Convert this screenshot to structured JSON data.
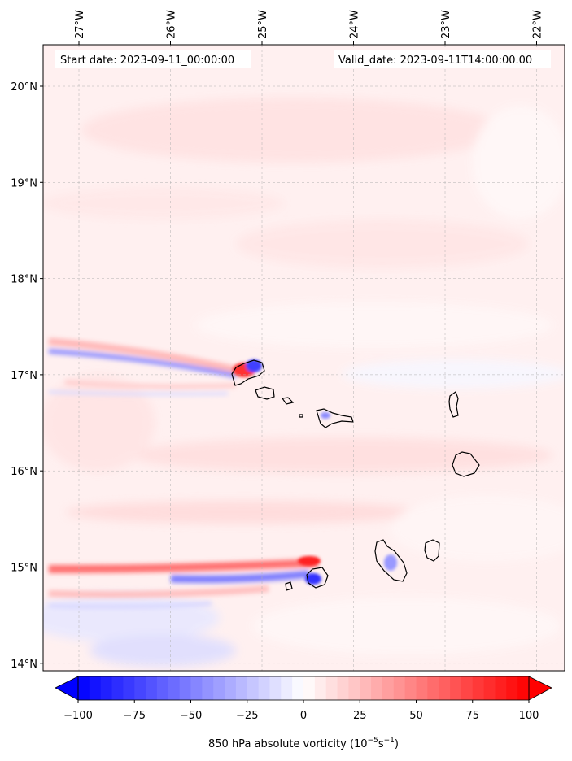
{
  "header": {
    "start_label": "Start date: 2023-09-11_00:00:00",
    "valid_label": "Valid_date: 2023-09-11T14:00:00.00"
  },
  "map": {
    "lon_ticks": [
      "27°W",
      "26°W",
      "25°W",
      "24°W",
      "23°W",
      "22°W"
    ],
    "lat_ticks": [
      "20°N",
      "19°N",
      "18°N",
      "17°N",
      "16°N",
      "15°N",
      "14°N"
    ],
    "lon_values": [
      -27,
      -26,
      -25,
      -24,
      -23,
      -22
    ],
    "lat_values": [
      20,
      19,
      18,
      17,
      16,
      15,
      14
    ],
    "colors": {
      "negative": "#0000ff",
      "zero": "#ffffff",
      "positive": "#ff0000",
      "coastline": "#000000"
    }
  },
  "colorbar": {
    "label_prefix": "850 hPa absolute vorticity (10",
    "label_exp1": "−5",
    "label_mid": "s",
    "label_exp2": "−1",
    "label_suffix": ")",
    "ticks": [
      "−100",
      "−75",
      "−50",
      "−25",
      "0",
      "25",
      "50",
      "75",
      "100"
    ],
    "tick_values": [
      -100,
      -75,
      -50,
      -25,
      0,
      25,
      50,
      75,
      100
    ],
    "min": -100,
    "max": 100,
    "levels": 40
  }
}
